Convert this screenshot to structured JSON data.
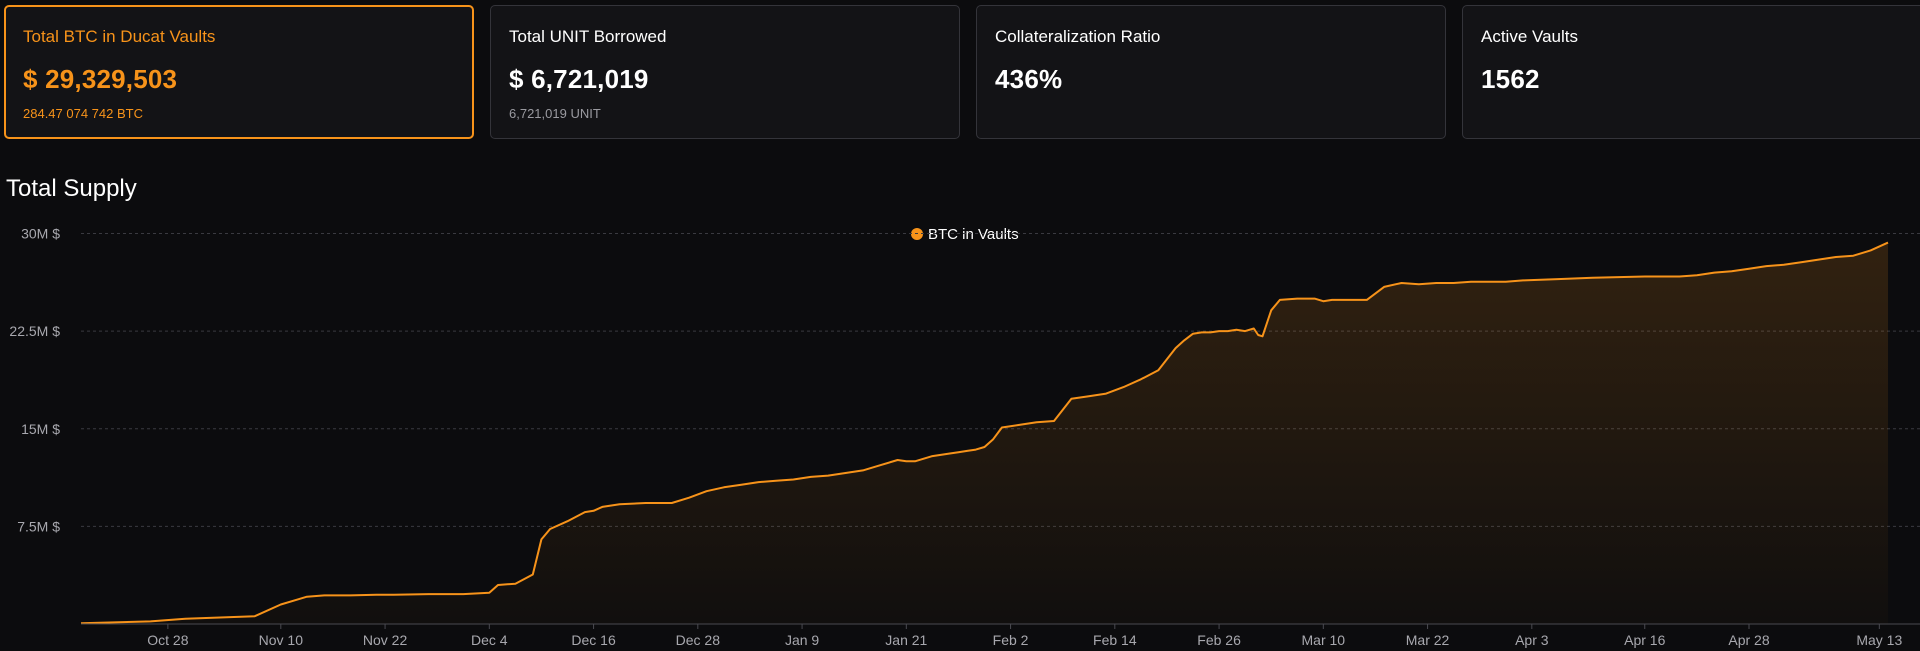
{
  "cards": [
    {
      "title": "Total BTC in Ducat Vaults",
      "value": "$ 29,329,503",
      "sub": "284.47 074 742 BTC"
    },
    {
      "title": "Total UNIT Borrowed",
      "value": "$ 6,721,019",
      "sub": "6,721,019 UNIT"
    },
    {
      "title": "Collateralization Ratio",
      "value": "436%",
      "sub": ""
    },
    {
      "title": "Active Vaults",
      "value": "1562",
      "sub": ""
    }
  ],
  "section": {
    "title": "Total Supply"
  },
  "colors": {
    "accent": "#f7931a",
    "background": "#0c0c0e",
    "card": "#131316",
    "border": "#34343a"
  },
  "chart_data": {
    "type": "area",
    "title": "",
    "legend": {
      "label": "BTC in Vaults",
      "placement": "top-center"
    },
    "xlabel": "",
    "ylabel": "",
    "y_ticks": [
      "7.5M $",
      "15M $",
      "22.5M $",
      "30M $"
    ],
    "y_tick_values": [
      7.5,
      15,
      22.5,
      30
    ],
    "ylim": [
      0,
      31.5
    ],
    "y_unit": "M $",
    "x_ticks": [
      "Oct 28",
      "Nov 10",
      "Nov 22",
      "Dec 4",
      "Dec 16",
      "Dec 28",
      "Jan 9",
      "Jan 21",
      "Feb 2",
      "Feb 14",
      "Feb 26",
      "Mar 10",
      "Mar 22",
      "Apr 3",
      "Apr 16",
      "Apr 28",
      "May 13"
    ],
    "x_tick_days": [
      10,
      23,
      35,
      47,
      59,
      71,
      83,
      95,
      107,
      119,
      131,
      143,
      155,
      167,
      180,
      192,
      207
    ],
    "xlim": [
      0,
      208
    ],
    "grid": true,
    "series": [
      {
        "name": "BTC in Vaults",
        "x": [
          0,
          8,
          12,
          16,
          20,
          23,
          25,
          26,
          28,
          31,
          34,
          36,
          40,
          44,
          47,
          48,
          50,
          52,
          53,
          54,
          56,
          58,
          59,
          60,
          62,
          65,
          68,
          70,
          72,
          74,
          76,
          78,
          80,
          82,
          84,
          86,
          88,
          90,
          92,
          94,
          95,
          96,
          97,
          98,
          100,
          101,
          102,
          103,
          104,
          105,
          106,
          108,
          110,
          112,
          114,
          116,
          118,
          120,
          122,
          124,
          126,
          127,
          128,
          129,
          130,
          131,
          132,
          133,
          134,
          135,
          135.5,
          136,
          137,
          138,
          140,
          142,
          143,
          144,
          146,
          148,
          150,
          152,
          154,
          156,
          158,
          160,
          162,
          164,
          166,
          170,
          174,
          180,
          184,
          186,
          188,
          190,
          192,
          194,
          196,
          198,
          200,
          202,
          204,
          206,
          208
        ],
        "y": [
          0.05,
          0.2,
          0.4,
          0.5,
          0.6,
          1.5,
          1.9,
          2.1,
          2.2,
          2.2,
          2.25,
          2.25,
          2.3,
          2.3,
          2.4,
          3.0,
          3.1,
          3.8,
          6.5,
          7.3,
          7.9,
          8.6,
          8.7,
          9.0,
          9.2,
          9.3,
          9.3,
          9.7,
          10.2,
          10.5,
          10.7,
          10.9,
          11.0,
          11.1,
          11.3,
          11.4,
          11.6,
          11.8,
          12.2,
          12.6,
          12.5,
          12.5,
          12.7,
          12.9,
          13.1,
          13.2,
          13.3,
          13.4,
          13.6,
          14.2,
          15.1,
          15.3,
          15.5,
          15.6,
          17.3,
          17.5,
          17.7,
          18.2,
          18.8,
          19.5,
          21.2,
          21.8,
          22.3,
          22.4,
          22.4,
          22.5,
          22.5,
          22.6,
          22.5,
          22.7,
          22.2,
          22.1,
          24.1,
          24.9,
          25.0,
          25.0,
          24.8,
          24.9,
          24.9,
          24.9,
          25.9,
          26.2,
          26.1,
          26.2,
          26.2,
          26.3,
          26.3,
          26.3,
          26.4,
          26.5,
          26.6,
          26.7,
          26.7,
          26.8,
          27.0,
          27.1,
          27.3,
          27.5,
          27.6,
          27.8,
          28.0,
          28.2,
          28.3,
          28.7,
          29.3
        ]
      }
    ]
  }
}
